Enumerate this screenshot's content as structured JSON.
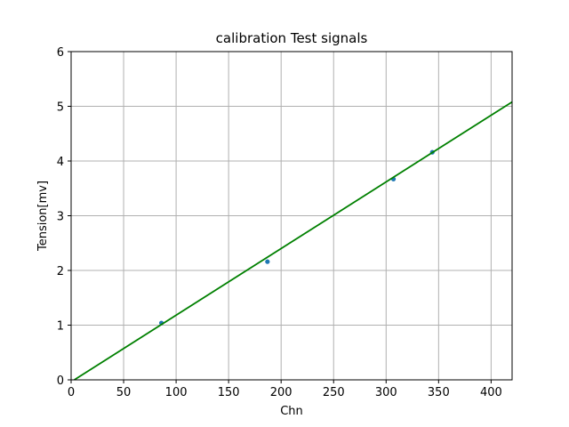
{
  "chart_data": {
    "type": "scatter",
    "title": "calibration Test signals",
    "xlabel": "Chn",
    "ylabel": "Tension[mv]",
    "xlim": [
      0,
      420
    ],
    "ylim": [
      0,
      6
    ],
    "xticks": [
      0,
      50,
      100,
      150,
      200,
      250,
      300,
      350,
      400
    ],
    "yticks": [
      0,
      1,
      2,
      3,
      4,
      5,
      6
    ],
    "grid": true,
    "series": [
      {
        "type": "scatter",
        "color": "#1f77b4",
        "points": [
          {
            "x": 86,
            "y": 1.04
          },
          {
            "x": 187,
            "y": 2.16
          },
          {
            "x": 307,
            "y": 3.67
          },
          {
            "x": 344,
            "y": 4.16
          }
        ]
      },
      {
        "type": "line",
        "color": "#008000",
        "points": [
          {
            "x": 3,
            "y": 0
          },
          {
            "x": 420,
            "y": 5.08
          }
        ]
      }
    ]
  }
}
